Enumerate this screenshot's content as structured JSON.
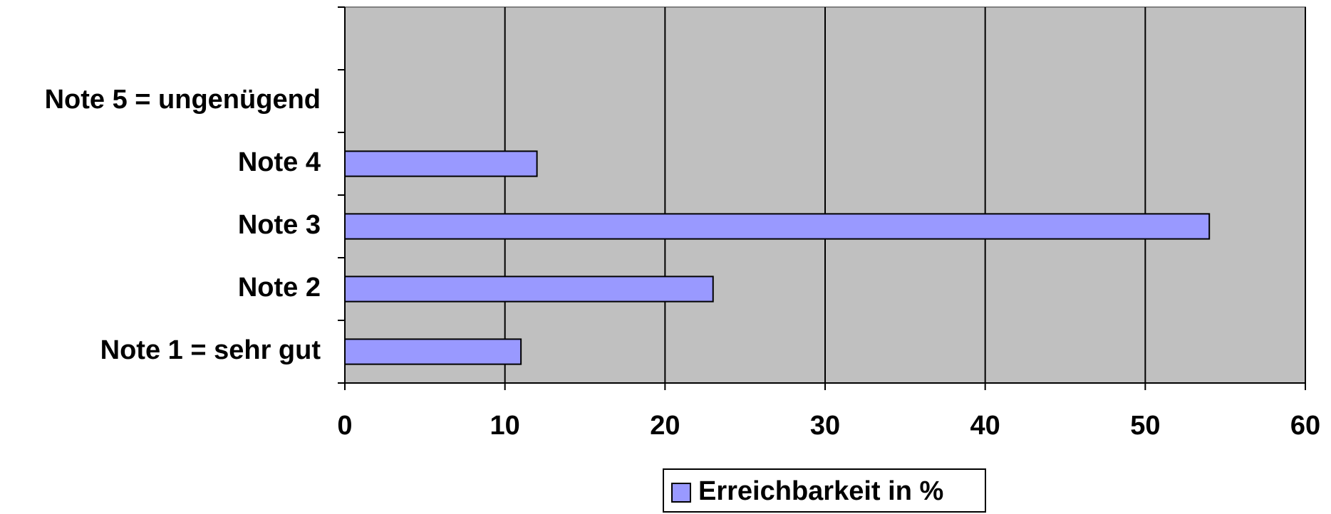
{
  "chart_data": {
    "type": "hbar",
    "categories": [
      "Note 1 = sehr gut",
      "Note 2",
      "Note 3",
      "Note 4",
      "Note 5 = ungenügend",
      null
    ],
    "series": [
      {
        "name": "Erreichbarkeit in %",
        "color": "#9999ff",
        "values": [
          11,
          23,
          54,
          12,
          0,
          null
        ]
      }
    ],
    "xlim": [
      0,
      60
    ],
    "xticks": [
      0,
      10,
      20,
      30,
      40,
      50,
      60
    ],
    "grid": true,
    "plot_background": "#c0c0c0",
    "legend": "bottom"
  }
}
